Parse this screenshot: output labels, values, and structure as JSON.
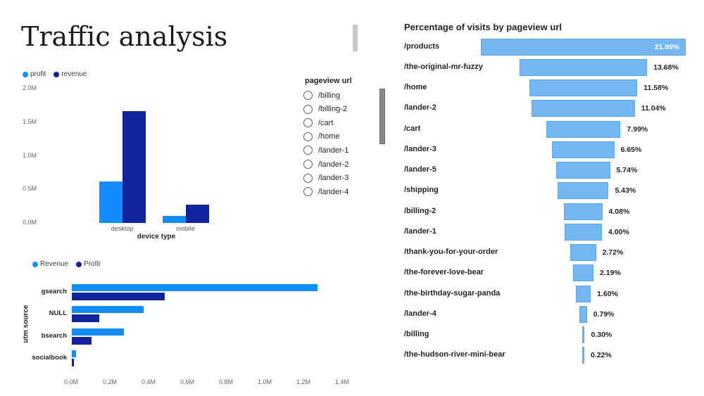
{
  "page": {
    "title": "Traffic analysis"
  },
  "colors": {
    "accent_blue": "#118DFF",
    "navy_blue": "#12239E",
    "funnel_blue": "#74b8f3",
    "funnel_border": "#58a6ee"
  },
  "slicer": {
    "header": "pageview url",
    "options": [
      "/billing",
      "/billing-2",
      "/cart",
      "/home",
      "/lander-1",
      "/lander-2",
      "/lander-3",
      "/lander-4"
    ]
  },
  "chart_data": [
    {
      "id": "device-type-chart",
      "type": "bar",
      "categories": [
        "desktop",
        "mobile"
      ],
      "series": [
        {
          "name": "profit",
          "color": "#118DFF",
          "values": [
            0.62,
            0.1
          ]
        },
        {
          "name": "revenue",
          "color": "#12239E",
          "values": [
            1.67,
            0.27
          ]
        }
      ],
      "xlabel": "device type",
      "ylabel": "",
      "ylim": [
        0,
        2.0
      ],
      "value_unit": "M",
      "yticks": [
        {
          "v": 0.0,
          "label": "0.0M"
        },
        {
          "v": 0.5,
          "label": "0.5M"
        },
        {
          "v": 1.0,
          "label": "1.0M"
        },
        {
          "v": 1.5,
          "label": "1.5M"
        },
        {
          "v": 2.0,
          "label": "2.0M"
        }
      ],
      "legend_position": "top-left",
      "grid": false
    },
    {
      "id": "utm-source-chart",
      "type": "bar-horizontal",
      "categories": [
        "gsearch",
        "NULL",
        "bsearch",
        "socialbook"
      ],
      "series": [
        {
          "name": "Revenue",
          "color": "#118DFF",
          "values": [
            1.27,
            0.37,
            0.27,
            0.02
          ]
        },
        {
          "name": "Profit",
          "color": "#12239E",
          "values": [
            0.48,
            0.14,
            0.1,
            0.01
          ]
        }
      ],
      "ylabel": "utm source",
      "xlabel": "",
      "xlim": [
        0,
        1.4
      ],
      "value_unit": "M",
      "xticks": [
        {
          "v": 0.0,
          "label": "0.0M"
        },
        {
          "v": 0.2,
          "label": "0.2M"
        },
        {
          "v": 0.4,
          "label": "0.4M"
        },
        {
          "v": 0.6,
          "label": "0.6M"
        },
        {
          "v": 0.8,
          "label": "0.8M"
        },
        {
          "v": 1.0,
          "label": "1.0M"
        },
        {
          "v": 1.2,
          "label": "1.2M"
        },
        {
          "v": 1.4,
          "label": "1.4M"
        }
      ],
      "legend_position": "top-left",
      "grid": false
    },
    {
      "id": "funnel-chart",
      "type": "funnel",
      "title": "Percentage of visits by pageview url",
      "categories": [
        "/products",
        "/the-original-mr-fuzzy",
        "/home",
        "/lander-2",
        "/cart",
        "/lander-3",
        "/lander-5",
        "/shipping",
        "/billing-2",
        "/lander-1",
        "/thank-you-for-your-order",
        "/the-forever-love-bear",
        "/the-birthday-sugar-panda",
        "/lander-4",
        "/billing",
        "/the-hudson-river-mini-bear"
      ],
      "values": [
        21.99,
        13.68,
        11.58,
        11.04,
        7.99,
        6.65,
        5.74,
        5.43,
        4.08,
        4.0,
        2.72,
        2.19,
        1.6,
        0.79,
        0.3,
        0.22
      ],
      "labels": [
        "21.99%",
        "13.68%",
        "11.58%",
        "11.04%",
        "7.99%",
        "6.65%",
        "5.74%",
        "5.43%",
        "4.08%",
        "4.00%",
        "2.72%",
        "2.19%",
        "1.60%",
        "0.79%",
        "0.30%",
        "0.22%"
      ]
    }
  ]
}
